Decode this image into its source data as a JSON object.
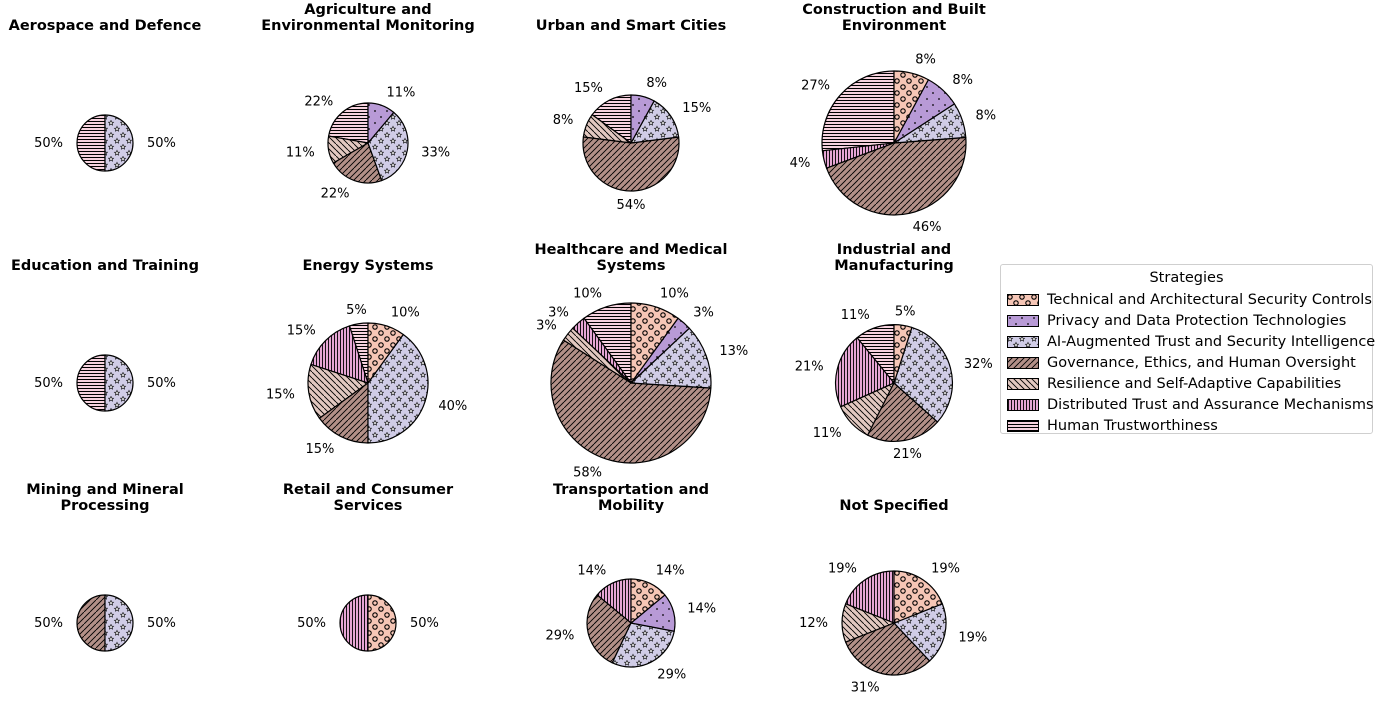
{
  "chart_data": {
    "type": "pie",
    "legend": {
      "title": "Strategies",
      "placement": "right",
      "entries": [
        {
          "label": "Technical and Architectural Security Controls",
          "color": "#f6c6b6",
          "pattern": "circles"
        },
        {
          "label": "Privacy and Data Protection Technologies",
          "color": "#b89ad6",
          "pattern": "dots"
        },
        {
          "label": "AI-Augmented Trust and Security Intelligence",
          "color": "#d0cce6",
          "pattern": "stars"
        },
        {
          "label": "Governance, Ethics, and Human Oversight",
          "color": "#b39088",
          "pattern": "diagonal"
        },
        {
          "label": "Resilience and Self-Adaptive Capabilities",
          "color": "#e2c8c0",
          "pattern": "backdiagonal"
        },
        {
          "label": "Distributed Trust and Assurance Mechanisms",
          "color": "#e6a6d4",
          "pattern": "vertical"
        },
        {
          "label": "Human Trustworthiness",
          "color": "#f6d2de",
          "pattern": "horizontal"
        }
      ]
    },
    "charts": [
      {
        "title": [
          "Aerospace and Defence"
        ],
        "slices": [
          {
            "category": 6,
            "value": 50,
            "label": "50%"
          },
          {
            "category": 2,
            "value": 50,
            "label": "50%"
          }
        ]
      },
      {
        "title": [
          "Agriculture and",
          "Environmental Monitoring"
        ],
        "slices": [
          {
            "category": 6,
            "value": 22,
            "label": "22%"
          },
          {
            "category": 4,
            "value": 11,
            "label": "11%"
          },
          {
            "category": 3,
            "value": 22,
            "label": "22%"
          },
          {
            "category": 2,
            "value": 33,
            "label": "33%"
          },
          {
            "category": 1,
            "value": 11,
            "label": "11%"
          }
        ]
      },
      {
        "title": [
          "Urban and Smart Cities"
        ],
        "slices": [
          {
            "category": 6,
            "value": 15,
            "label": "15%"
          },
          {
            "category": 4,
            "value": 8,
            "label": "8%"
          },
          {
            "category": 3,
            "value": 54,
            "label": "54%"
          },
          {
            "category": 2,
            "value": 15,
            "label": "15%"
          },
          {
            "category": 1,
            "value": 8,
            "label": "8%"
          }
        ]
      },
      {
        "title": [
          "Construction and Built",
          "Environment"
        ],
        "slices": [
          {
            "category": 6,
            "value": 27,
            "label": "27%"
          },
          {
            "category": 5,
            "value": 4,
            "label": "4%"
          },
          {
            "category": 3,
            "value": 46,
            "label": "46%"
          },
          {
            "category": 2,
            "value": 8,
            "label": "8%"
          },
          {
            "category": 1,
            "value": 8,
            "label": "8%"
          },
          {
            "category": 0,
            "value": 8,
            "label": "8%"
          }
        ]
      },
      {
        "title": [
          "Education and Training"
        ],
        "slices": [
          {
            "category": 6,
            "value": 50,
            "label": "50%"
          },
          {
            "category": 2,
            "value": 50,
            "label": "50%"
          }
        ]
      },
      {
        "title": [
          "Energy Systems"
        ],
        "slices": [
          {
            "category": 6,
            "value": 5,
            "label": "5%"
          },
          {
            "category": 5,
            "value": 15,
            "label": "15%"
          },
          {
            "category": 4,
            "value": 15,
            "label": "15%"
          },
          {
            "category": 3,
            "value": 15,
            "label": "15%"
          },
          {
            "category": 2,
            "value": 40,
            "label": "40%"
          },
          {
            "category": 0,
            "value": 10,
            "label": "10%"
          }
        ]
      },
      {
        "title": [
          "Healthcare and Medical",
          "Systems"
        ],
        "slices": [
          {
            "category": 6,
            "value": 10,
            "label": "10%"
          },
          {
            "category": 5,
            "value": 3,
            "label": "3%"
          },
          {
            "category": 4,
            "value": 3,
            "label": "3%"
          },
          {
            "category": 3,
            "value": 58,
            "label": "58%"
          },
          {
            "category": 2,
            "value": 13,
            "label": "13%"
          },
          {
            "category": 1,
            "value": 3,
            "label": "3%"
          },
          {
            "category": 0,
            "value": 10,
            "label": "10%"
          }
        ]
      },
      {
        "title": [
          "Industrial and",
          "Manufacturing"
        ],
        "slices": [
          {
            "category": 6,
            "value": 11,
            "label": "11%"
          },
          {
            "category": 5,
            "value": 21,
            "label": "21%"
          },
          {
            "category": 4,
            "value": 11,
            "label": "11%"
          },
          {
            "category": 3,
            "value": 21,
            "label": "21%"
          },
          {
            "category": 2,
            "value": 32,
            "label": "32%"
          },
          {
            "category": 0,
            "value": 5,
            "label": "5%"
          }
        ]
      },
      {
        "title": [
          "Mining and Mineral",
          "Processing"
        ],
        "slices": [
          {
            "category": 3,
            "value": 50,
            "label": "50%"
          },
          {
            "category": 2,
            "value": 50,
            "label": "50%"
          }
        ]
      },
      {
        "title": [
          "Retail and Consumer",
          "Services"
        ],
        "slices": [
          {
            "category": 5,
            "value": 50,
            "label": "50%"
          },
          {
            "category": 0,
            "value": 50,
            "label": "50%"
          }
        ]
      },
      {
        "title": [
          "Transportation and",
          "Mobility"
        ],
        "slices": [
          {
            "category": 5,
            "value": 14,
            "label": "14%"
          },
          {
            "category": 3,
            "value": 29,
            "label": "29%"
          },
          {
            "category": 2,
            "value": 29,
            "label": "29%"
          },
          {
            "category": 1,
            "value": 14,
            "label": "14%"
          },
          {
            "category": 0,
            "value": 14,
            "label": "14%"
          }
        ]
      },
      {
        "title": [
          "Not Specified"
        ],
        "slices": [
          {
            "category": 5,
            "value": 19,
            "label": "19%"
          },
          {
            "category": 4,
            "value": 12,
            "label": "12%"
          },
          {
            "category": 3,
            "value": 31,
            "label": "31%"
          },
          {
            "category": 2,
            "value": 19,
            "label": "19%"
          },
          {
            "category": 0,
            "value": 19,
            "label": "19%"
          }
        ]
      }
    ]
  }
}
